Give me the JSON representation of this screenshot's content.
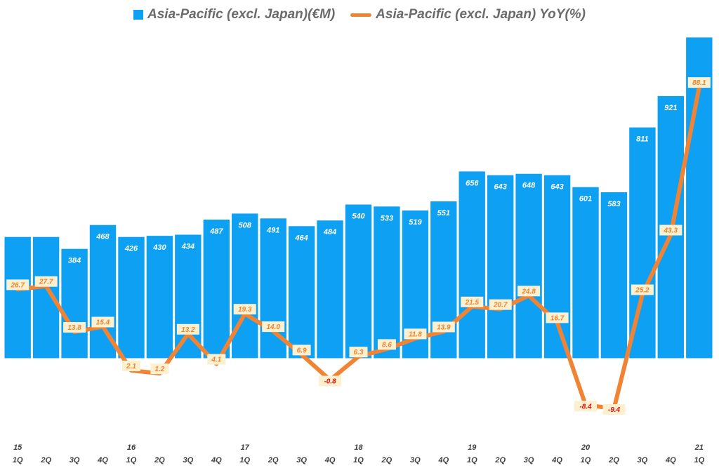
{
  "chart_data": {
    "type": "bar+line",
    "title": "",
    "legend": [
      {
        "name": "Asia-Pacific (excl. Japan)(€M)",
        "kind": "bar",
        "color": "#0ea1f3"
      },
      {
        "name": "Asia-Pacific (excl. Japan) YoY(%)",
        "kind": "line",
        "color": "#f08334"
      }
    ],
    "categories": [
      "1Q",
      "2Q",
      "3Q",
      "4Q",
      "1Q",
      "2Q",
      "3Q",
      "4Q",
      "1Q",
      "2Q",
      "3Q",
      "4Q",
      "1Q",
      "2Q",
      "3Q",
      "4Q",
      "1Q",
      "2Q",
      "3Q",
      "4Q",
      "1Q",
      "2Q",
      "3Q",
      "4Q",
      "1Q"
    ],
    "year_labels": [
      "15",
      "",
      "",
      "",
      "16",
      "",
      "",
      "",
      "17",
      "",
      "",
      "",
      "18",
      "",
      "",
      "",
      "19",
      "",
      "",
      "",
      "20",
      "",
      "",
      "",
      "21"
    ],
    "series": [
      {
        "name": "Asia-Pacific (excl. Japan)(€M)",
        "type": "bar",
        "axis": "left",
        "values": [
          426,
          426,
          384,
          468,
          426,
          430,
          434,
          487,
          508,
          491,
          464,
          484,
          540,
          533,
          519,
          551,
          656,
          643,
          648,
          643,
          601,
          583,
          811,
          921,
          1127
        ]
      },
      {
        "name": "Asia-Pacific (excl. Japan) YoY(%)",
        "type": "line",
        "axis": "right",
        "values": [
          26.7,
          27.7,
          13.8,
          15.4,
          2.1,
          1.2,
          13.2,
          4.1,
          19.3,
          14.0,
          6.9,
          -0.8,
          6.3,
          8.6,
          11.8,
          13.9,
          21.5,
          20.7,
          24.8,
          16.7,
          -8.4,
          -9.4,
          25.2,
          43.3,
          88.1
        ]
      }
    ],
    "bar_labels": [
      "",
      "",
      "384",
      "468",
      "426",
      "430",
      "434",
      "487",
      "508",
      "491",
      "464",
      "484",
      "540",
      "533",
      "519",
      "551",
      "656",
      "643",
      "648",
      "643",
      "601",
      "583",
      "811",
      "921",
      ""
    ],
    "line_labels": [
      "26.7",
      "27.7",
      "13.8",
      "15.4",
      "2.1",
      "1.2",
      "13.2",
      "4.1",
      "19.3",
      "14.0",
      "6.9",
      "-0.8",
      "6.3",
      "8.6",
      "11.8",
      "13.9",
      "21.5",
      "20.7",
      "24.8",
      "16.7",
      "-8.4",
      "-9.4",
      "25.2",
      "43.3",
      "88.1"
    ],
    "y_left_range": [
      -270,
      1160
    ],
    "y_right_range": [
      -17.5,
      106
    ],
    "grid": false,
    "legend_position": "top-center",
    "colors": {
      "bar": "#0ea1f3",
      "line": "#f08334",
      "label_box": "#fdf0cf",
      "label_positive": "#f08334",
      "label_negative": "#e01010"
    }
  }
}
